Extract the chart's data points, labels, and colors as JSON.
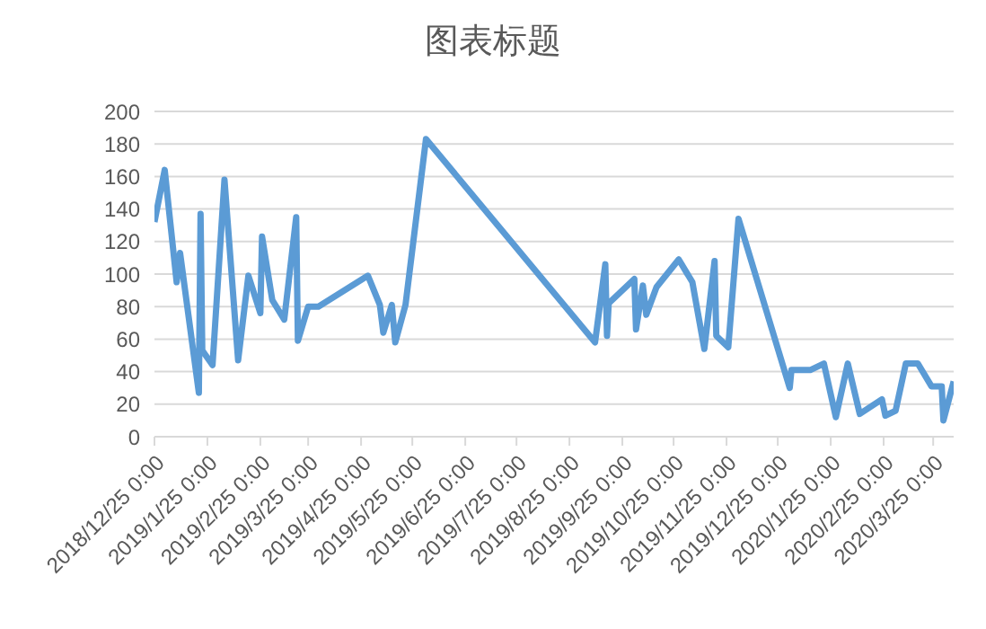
{
  "chart_data": {
    "type": "line",
    "title": "图表标题",
    "x": [
      "2018-12-25",
      "2018-12-31",
      "2019-01-07",
      "2019-01-09",
      "2019-01-20",
      "2019-01-21",
      "2019-01-22",
      "2019-01-28",
      "2019-02-04",
      "2019-02-12",
      "2019-02-18",
      "2019-02-25",
      "2019-02-26",
      "2019-03-04",
      "2019-03-11",
      "2019-03-18",
      "2019-03-19",
      "2019-03-25",
      "2019-03-31",
      "2019-04-29",
      "2019-05-06",
      "2019-05-08",
      "2019-05-13",
      "2019-05-15",
      "2019-05-21",
      "2019-06-02",
      "2019-09-09",
      "2019-09-15",
      "2019-09-16",
      "2019-09-17",
      "2019-10-02",
      "2019-10-03",
      "2019-10-07",
      "2019-10-09",
      "2019-10-15",
      "2019-10-28",
      "2019-11-05",
      "2019-11-12",
      "2019-11-18",
      "2019-11-19",
      "2019-11-26",
      "2019-12-02",
      "2020-01-01",
      "2020-01-02",
      "2020-01-13",
      "2020-01-21",
      "2020-01-28",
      "2020-02-04",
      "2020-02-11",
      "2020-02-24",
      "2020-02-26",
      "2020-03-03",
      "2020-03-09",
      "2020-03-16",
      "2020-03-24",
      "2020-03-30",
      "2020-03-31",
      "2020-04-06"
    ],
    "series": [
      {
        "color": "#5b9bd5",
        "values": [
          132,
          164,
          95,
          113,
          27,
          137,
          53,
          44,
          158,
          47,
          99,
          76,
          123,
          84,
          72,
          135,
          59,
          80,
          80,
          99,
          81,
          64,
          81,
          58,
          81,
          183,
          58,
          106,
          62,
          82,
          97,
          66,
          93,
          75,
          92,
          109,
          95,
          54,
          108,
          62,
          55,
          134,
          30,
          41,
          41,
          45,
          12,
          45,
          14,
          23,
          13,
          16,
          45,
          45,
          31,
          31,
          10,
          34
        ]
      }
    ],
    "xlim": [
      "2018-12-25",
      "2020-04-06"
    ],
    "xticks": [
      {
        "value": "2018-12-25",
        "label": "2018/12/25 0:00"
      },
      {
        "value": "2019-01-25",
        "label": "2019/1/25 0:00"
      },
      {
        "value": "2019-02-25",
        "label": "2019/2/25 0:00"
      },
      {
        "value": "2019-03-25",
        "label": "2019/3/25 0:00"
      },
      {
        "value": "2019-04-25",
        "label": "2019/4/25 0:00"
      },
      {
        "value": "2019-05-25",
        "label": "2019/5/25 0:00"
      },
      {
        "value": "2019-06-25",
        "label": "2019/6/25 0:00"
      },
      {
        "value": "2019-07-25",
        "label": "2019/7/25 0:00"
      },
      {
        "value": "2019-08-25",
        "label": "2019/8/25 0:00"
      },
      {
        "value": "2019-09-25",
        "label": "2019/9/25 0:00"
      },
      {
        "value": "2019-10-25",
        "label": "2019/10/25 0:00"
      },
      {
        "value": "2019-11-25",
        "label": "2019/11/25 0:00"
      },
      {
        "value": "2019-12-25",
        "label": "2019/12/25 0:00"
      },
      {
        "value": "2020-01-25",
        "label": "2020/1/25 0:00"
      },
      {
        "value": "2020-02-25",
        "label": "2020/2/25 0:00"
      },
      {
        "value": "2020-03-25",
        "label": "2020/3/25 0:00"
      }
    ],
    "ylim": [
      0,
      200
    ],
    "yticks": [
      0,
      20,
      40,
      60,
      80,
      100,
      120,
      140,
      160,
      180,
      200
    ],
    "grid": "y",
    "marker": "none",
    "line_style": "solid"
  }
}
